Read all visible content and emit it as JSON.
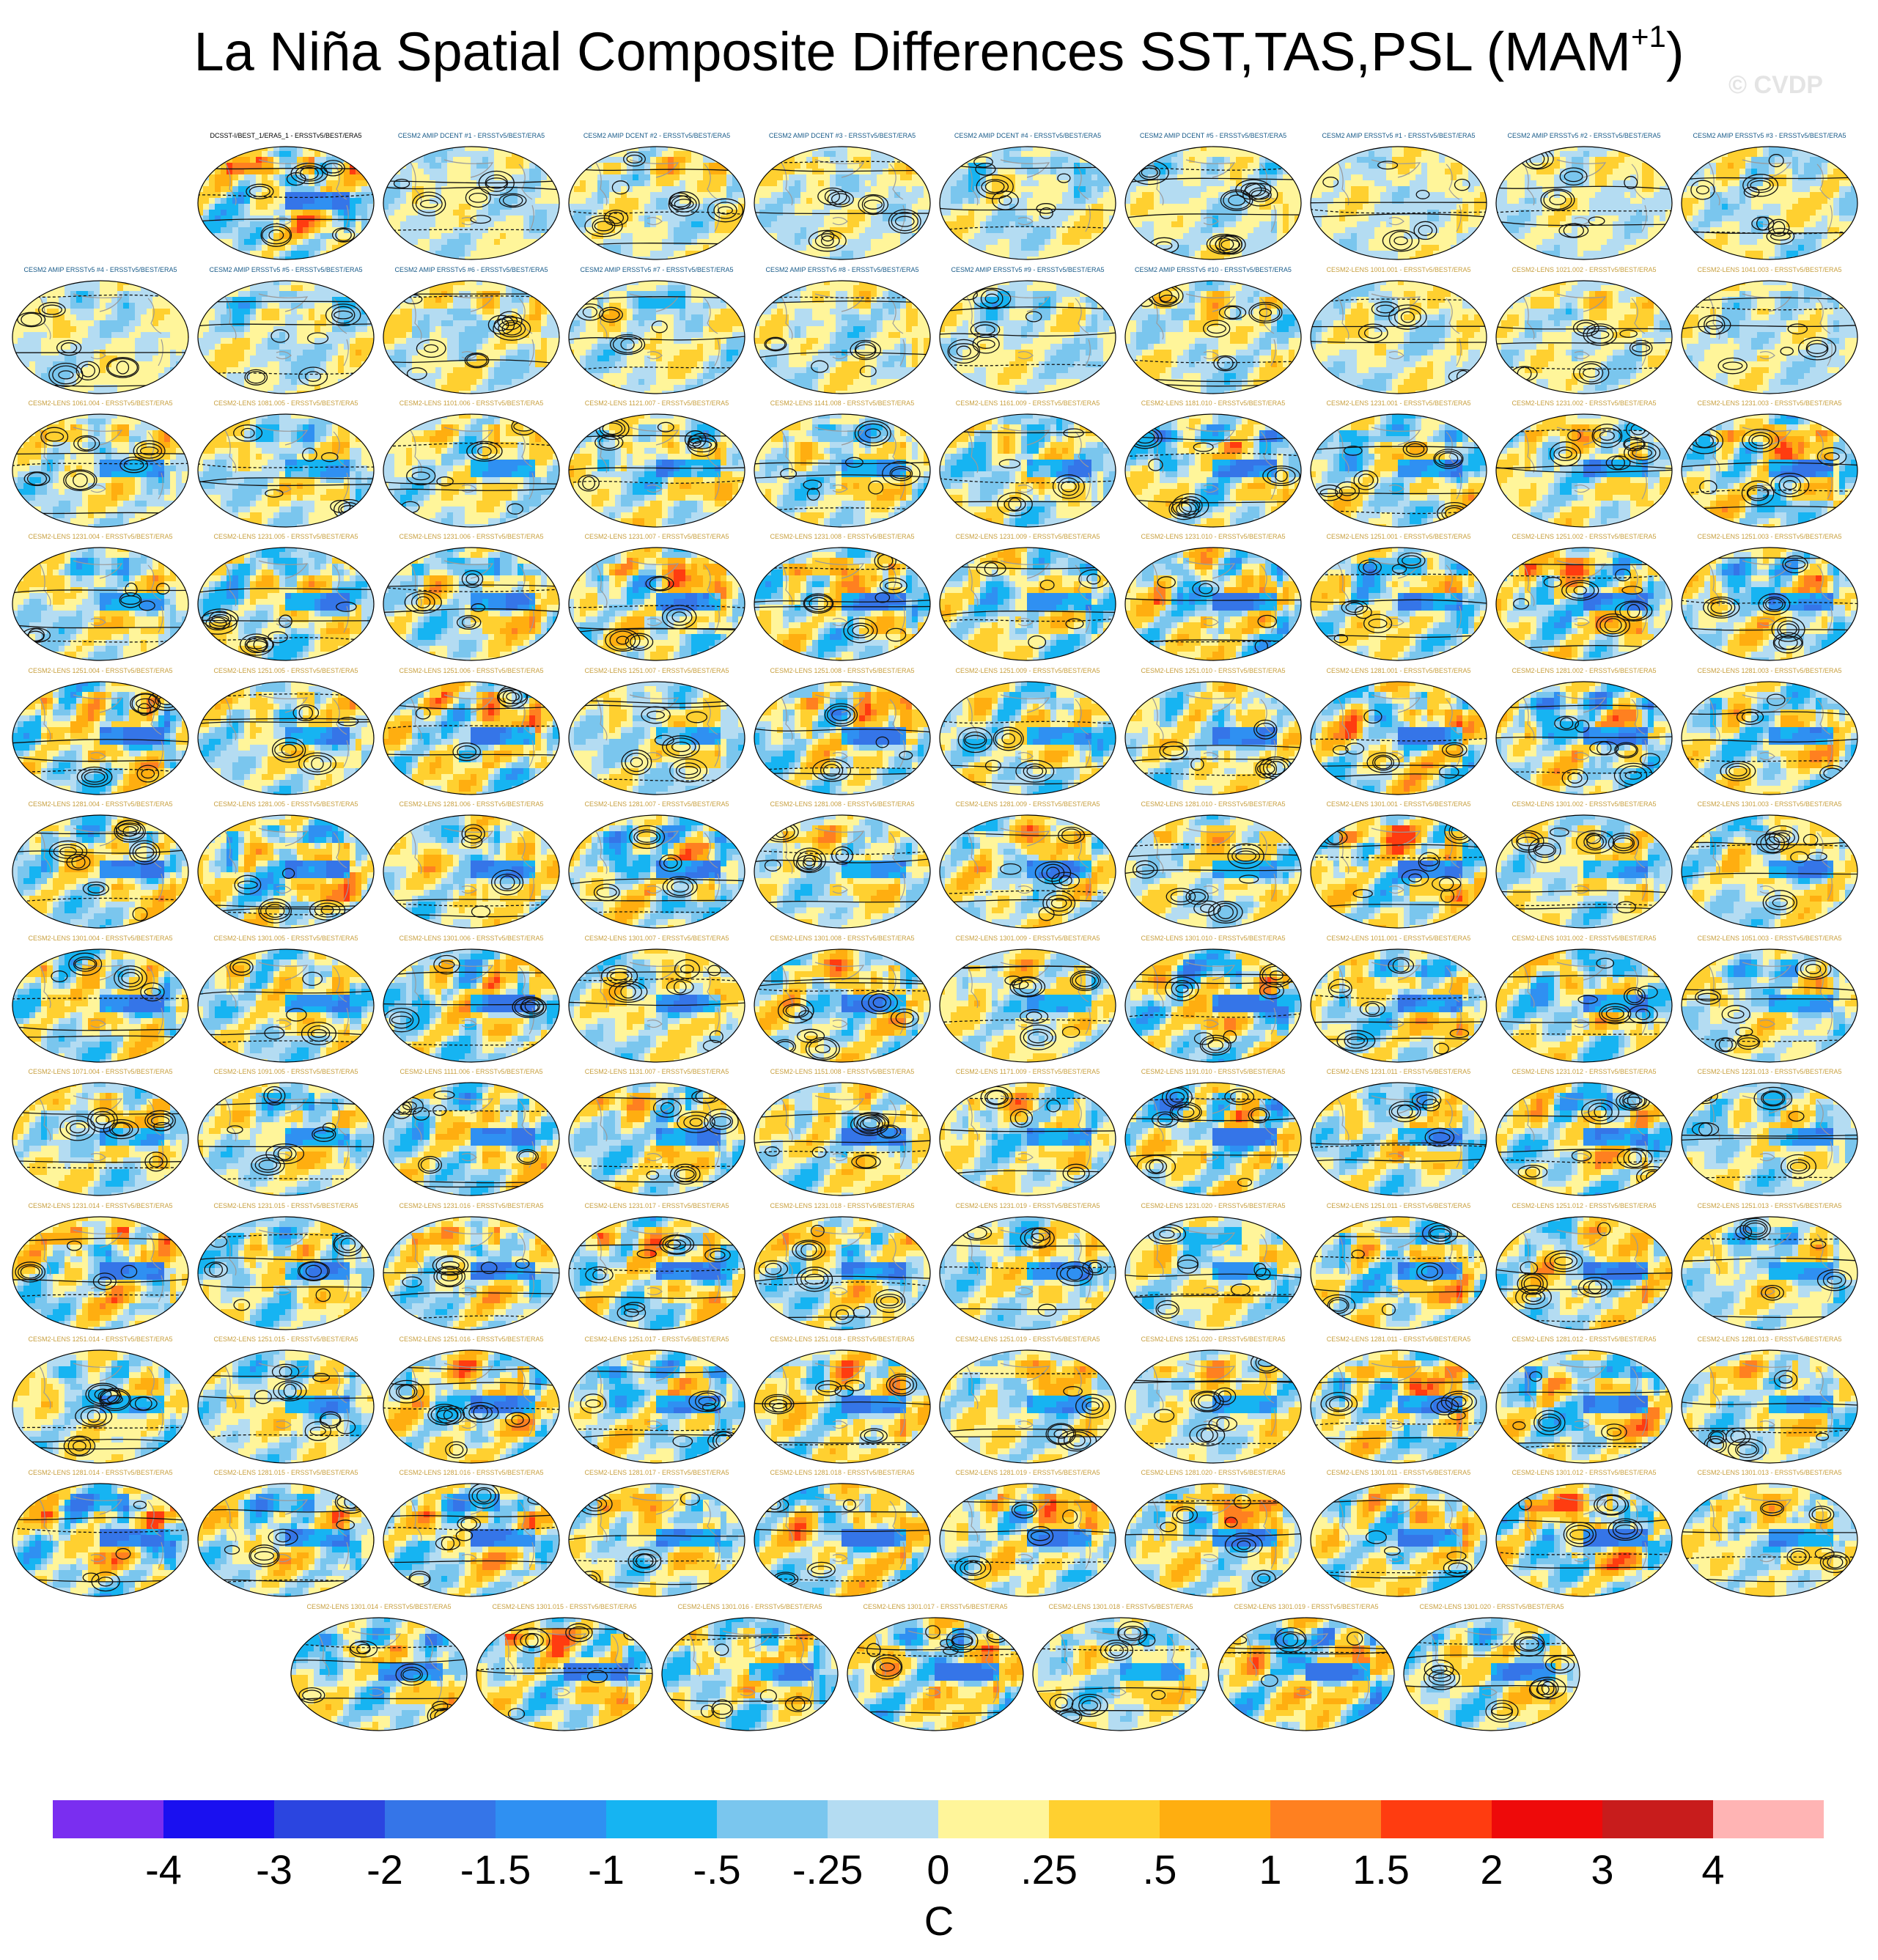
{
  "title": "La Niña Spatial Composite Differences SST,TAS,PSL (MAM",
  "title_superscript": "+1",
  "title_suffix": ")",
  "credit": "© CVDP",
  "colors": {
    "obs_label": "#000000",
    "amip_label": "#1a5c8a",
    "lens_label": "#c8a040",
    "contour": "#111111",
    "coast": "#9a9a9a"
  },
  "panel_labels": {
    "row1": [
      "DCSST-I/BEST_1/ERA5_1 - ERSSTv5/BEST/ERA5",
      "CESM2 AMIP DCENT #1 - ERSSTv5/BEST/ERA5",
      "CESM2 AMIP DCENT #2 - ERSSTv5/BEST/ERA5",
      "CESM2 AMIP DCENT #3 - ERSSTv5/BEST/ERA5",
      "CESM2 AMIP DCENT #4 - ERSSTv5/BEST/ERA5",
      "CESM2 AMIP DCENT #5 - ERSSTv5/BEST/ERA5",
      "CESM2 AMIP ERSSTv5 #1 - ERSSTv5/BEST/ERA5",
      "CESM2 AMIP ERSSTv5 #2 - ERSSTv5/BEST/ERA5",
      "CESM2 AMIP ERSSTv5 #3 - ERSSTv5/BEST/ERA5"
    ],
    "row2": [
      "CESM2 AMIP ERSSTv5 #4 - ERSSTv5/BEST/ERA5",
      "CESM2 AMIP ERSSTv5 #5 - ERSSTv5/BEST/ERA5",
      "CESM2 AMIP ERSSTv5 #6 - ERSSTv5/BEST/ERA5",
      "CESM2 AMIP ERSSTv5 #7 - ERSSTv5/BEST/ERA5",
      "CESM2 AMIP ERSSTv5 #8 - ERSSTv5/BEST/ERA5",
      "CESM2 AMIP ERSSTv5 #9 - ERSSTv5/BEST/ERA5",
      "CESM2 AMIP ERSSTv5 #10 - ERSSTv5/BEST/ERA5",
      "CESM2-LENS 1001.001 - ERSSTv5/BEST/ERA5",
      "CESM2-LENS 1021.002 - ERSSTv5/BEST/ERA5",
      "CESM2-LENS 1041.003 - ERSSTv5/BEST/ERA5"
    ],
    "row3": [
      "CESM2-LENS 1061.004 - ERSSTv5/BEST/ERA5",
      "CESM2-LENS 1081.005 - ERSSTv5/BEST/ERA5",
      "CESM2-LENS 1101.006 - ERSSTv5/BEST/ERA5",
      "CESM2-LENS 1121.007 - ERSSTv5/BEST/ERA5",
      "CESM2-LENS 1141.008 - ERSSTv5/BEST/ERA5",
      "CESM2-LENS 1161.009 - ERSSTv5/BEST/ERA5",
      "CESM2-LENS 1181.010 - ERSSTv5/BEST/ERA5",
      "CESM2-LENS 1231.001 - ERSSTv5/BEST/ERA5",
      "CESM2-LENS 1231.002 - ERSSTv5/BEST/ERA5",
      "CESM2-LENS 1231.003 - ERSSTv5/BEST/ERA5"
    ],
    "row4": [
      "CESM2-LENS 1231.004 - ERSSTv5/BEST/ERA5",
      "CESM2-LENS 1231.005 - ERSSTv5/BEST/ERA5",
      "CESM2-LENS 1231.006 - ERSSTv5/BEST/ERA5",
      "CESM2-LENS 1231.007 - ERSSTv5/BEST/ERA5",
      "CESM2-LENS 1231.008 - ERSSTv5/BEST/ERA5",
      "CESM2-LENS 1231.009 - ERSSTv5/BEST/ERA5",
      "CESM2-LENS 1231.010 - ERSSTv5/BEST/ERA5",
      "CESM2-LENS 1251.001 - ERSSTv5/BEST/ERA5",
      "CESM2-LENS 1251.002 - ERSSTv5/BEST/ERA5",
      "CESM2-LENS 1251.003 - ERSSTv5/BEST/ERA5"
    ],
    "row5": [
      "CESM2-LENS 1251.004 - ERSSTv5/BEST/ERA5",
      "CESM2-LENS 1251.005 - ERSSTv5/BEST/ERA5",
      "CESM2-LENS 1251.006 - ERSSTv5/BEST/ERA5",
      "CESM2-LENS 1251.007 - ERSSTv5/BEST/ERA5",
      "CESM2-LENS 1251.008 - ERSSTv5/BEST/ERA5",
      "CESM2-LENS 1251.009 - ERSSTv5/BEST/ERA5",
      "CESM2-LENS 1251.010 - ERSSTv5/BEST/ERA5",
      "CESM2-LENS 1281.001 - ERSSTv5/BEST/ERA5",
      "CESM2-LENS 1281.002 - ERSSTv5/BEST/ERA5",
      "CESM2-LENS 1281.003 - ERSSTv5/BEST/ERA5"
    ],
    "row6": [
      "CESM2-LENS 1281.004 - ERSSTv5/BEST/ERA5",
      "CESM2-LENS 1281.005 - ERSSTv5/BEST/ERA5",
      "CESM2-LENS 1281.006 - ERSSTv5/BEST/ERA5",
      "CESM2-LENS 1281.007 - ERSSTv5/BEST/ERA5",
      "CESM2-LENS 1281.008 - ERSSTv5/BEST/ERA5",
      "CESM2-LENS 1281.009 - ERSSTv5/BEST/ERA5",
      "CESM2-LENS 1281.010 - ERSSTv5/BEST/ERA5",
      "CESM2-LENS 1301.001 - ERSSTv5/BEST/ERA5",
      "CESM2-LENS 1301.002 - ERSSTv5/BEST/ERA5",
      "CESM2-LENS 1301.003 - ERSSTv5/BEST/ERA5"
    ],
    "row7": [
      "CESM2-LENS 1301.004 - ERSSTv5/BEST/ERA5",
      "CESM2-LENS 1301.005 - ERSSTv5/BEST/ERA5",
      "CESM2-LENS 1301.006 - ERSSTv5/BEST/ERA5",
      "CESM2-LENS 1301.007 - ERSSTv5/BEST/ERA5",
      "CESM2-LENS 1301.008 - ERSSTv5/BEST/ERA5",
      "CESM2-LENS 1301.009 - ERSSTv5/BEST/ERA5",
      "CESM2-LENS 1301.010 - ERSSTv5/BEST/ERA5",
      "CESM2-LENS 1011.001 - ERSSTv5/BEST/ERA5",
      "CESM2-LENS 1031.002 - ERSSTv5/BEST/ERA5",
      "CESM2-LENS 1051.003 - ERSSTv5/BEST/ERA5"
    ],
    "row8": [
      "CESM2-LENS 1071.004 - ERSSTv5/BEST/ERA5",
      "CESM2-LENS 1091.005 - ERSSTv5/BEST/ERA5",
      "CESM2-LENS 1111.006 - ERSSTv5/BEST/ERA5",
      "CESM2-LENS 1131.007 - ERSSTv5/BEST/ERA5",
      "CESM2-LENS 1151.008 - ERSSTv5/BEST/ERA5",
      "CESM2-LENS 1171.009 - ERSSTv5/BEST/ERA5",
      "CESM2-LENS 1191.010 - ERSSTv5/BEST/ERA5",
      "CESM2-LENS 1231.011 - ERSSTv5/BEST/ERA5",
      "CESM2-LENS 1231.012 - ERSSTv5/BEST/ERA5",
      "CESM2-LENS 1231.013 - ERSSTv5/BEST/ERA5"
    ],
    "row9": [
      "CESM2-LENS 1231.014 - ERSSTv5/BEST/ERA5",
      "CESM2-LENS 1231.015 - ERSSTv5/BEST/ERA5",
      "CESM2-LENS 1231.016 - ERSSTv5/BEST/ERA5",
      "CESM2-LENS 1231.017 - ERSSTv5/BEST/ERA5",
      "CESM2-LENS 1231.018 - ERSSTv5/BEST/ERA5",
      "CESM2-LENS 1231.019 - ERSSTv5/BEST/ERA5",
      "CESM2-LENS 1231.020 - ERSSTv5/BEST/ERA5",
      "CESM2-LENS 1251.011 - ERSSTv5/BEST/ERA5",
      "CESM2-LENS 1251.012 - ERSSTv5/BEST/ERA5",
      "CESM2-LENS 1251.013 - ERSSTv5/BEST/ERA5"
    ],
    "row10": [
      "CESM2-LENS 1251.014 - ERSSTv5/BEST/ERA5",
      "CESM2-LENS 1251.015 - ERSSTv5/BEST/ERA5",
      "CESM2-LENS 1251.016 - ERSSTv5/BEST/ERA5",
      "CESM2-LENS 1251.017 - ERSSTv5/BEST/ERA5",
      "CESM2-LENS 1251.018 - ERSSTv5/BEST/ERA5",
      "CESM2-LENS 1251.019 - ERSSTv5/BEST/ERA5",
      "CESM2-LENS 1251.020 - ERSSTv5/BEST/ERA5",
      "CESM2-LENS 1281.011 - ERSSTv5/BEST/ERA5",
      "CESM2-LENS 1281.012 - ERSSTv5/BEST/ERA5",
      "CESM2-LENS 1281.013 - ERSSTv5/BEST/ERA5"
    ],
    "row11": [
      "CESM2-LENS 1281.014 - ERSSTv5/BEST/ERA5",
      "CESM2-LENS 1281.015 - ERSSTv5/BEST/ERA5",
      "CESM2-LENS 1281.016 - ERSSTv5/BEST/ERA5",
      "CESM2-LENS 1281.017 - ERSSTv5/BEST/ERA5",
      "CESM2-LENS 1281.018 - ERSSTv5/BEST/ERA5",
      "CESM2-LENS 1281.019 - ERSSTv5/BEST/ERA5",
      "CESM2-LENS 1281.020 - ERSSTv5/BEST/ERA5",
      "CESM2-LENS 1301.011 - ERSSTv5/BEST/ERA5",
      "CESM2-LENS 1301.012 - ERSSTv5/BEST/ERA5",
      "CESM2-LENS 1301.013 - ERSSTv5/BEST/ERA5"
    ],
    "row12": [
      "CESM2-LENS 1301.014 - ERSSTv5/BEST/ERA5",
      "CESM2-LENS 1301.015 - ERSSTv5/BEST/ERA5",
      "CESM2-LENS 1301.016 - ERSSTv5/BEST/ERA5",
      "CESM2-LENS 1301.017 - ERSSTv5/BEST/ERA5",
      "CESM2-LENS 1301.018 - ERSSTv5/BEST/ERA5",
      "CESM2-LENS 1301.019 - ERSSTv5/BEST/ERA5",
      "CESM2-LENS 1301.020 - ERSSTv5/BEST/ERA5"
    ]
  },
  "chart_data": {
    "type": "heatmap",
    "units": "C",
    "colorbar": {
      "tick_labels": [
        "-4",
        "-3",
        "-2",
        "-1.5",
        "-1",
        "-.5",
        "-.25",
        "0",
        ".25",
        ".5",
        "1",
        "1.5",
        "2",
        "3",
        "4"
      ],
      "colors": [
        "#7a2ef0",
        "#1a10f0",
        "#2b45e0",
        "#3575e8",
        "#2f90f2",
        "#16b4f2",
        "#7ac6ee",
        "#b4dcf2",
        "#fff59a",
        "#ffd030",
        "#ffae10",
        "#ff8020",
        "#ff3c10",
        "#ee0a0a",
        "#c81c1c",
        "#ffb4b4"
      ]
    },
    "layout": {
      "rows": 12,
      "panels_per_row": [
        9,
        10,
        10,
        10,
        10,
        10,
        10,
        10,
        10,
        10,
        10,
        7
      ]
    }
  }
}
